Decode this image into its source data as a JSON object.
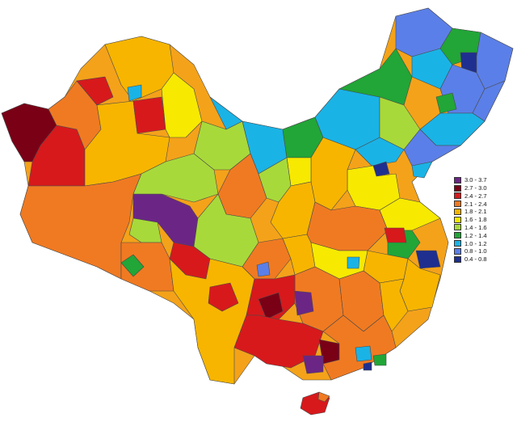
{
  "legend": {
    "items": [
      {
        "label": "3.0 - 3.7",
        "color": "#6b2685"
      },
      {
        "label": "2.7 - 3.0",
        "color": "#7a0016"
      },
      {
        "label": "2.4 - 2.7",
        "color": "#d7191c"
      },
      {
        "label": "2.1 - 2.4",
        "color": "#f07a22"
      },
      {
        "label": "1.8 - 2.1",
        "color": "#f7b500"
      },
      {
        "label": "1.6 - 1.8",
        "color": "#f7e900"
      },
      {
        "label": "1.4 - 1.6",
        "color": "#a8d93a"
      },
      {
        "label": "1.2 - 1.4",
        "color": "#21a637"
      },
      {
        "label": "1.0 - 1.2",
        "color": "#1ab3e6"
      },
      {
        "label": "0.8 - 1.0",
        "color": "#5b7fe8"
      },
      {
        "label": "0.4 - 0.8",
        "color": "#1f2f8f"
      }
    ]
  }
}
